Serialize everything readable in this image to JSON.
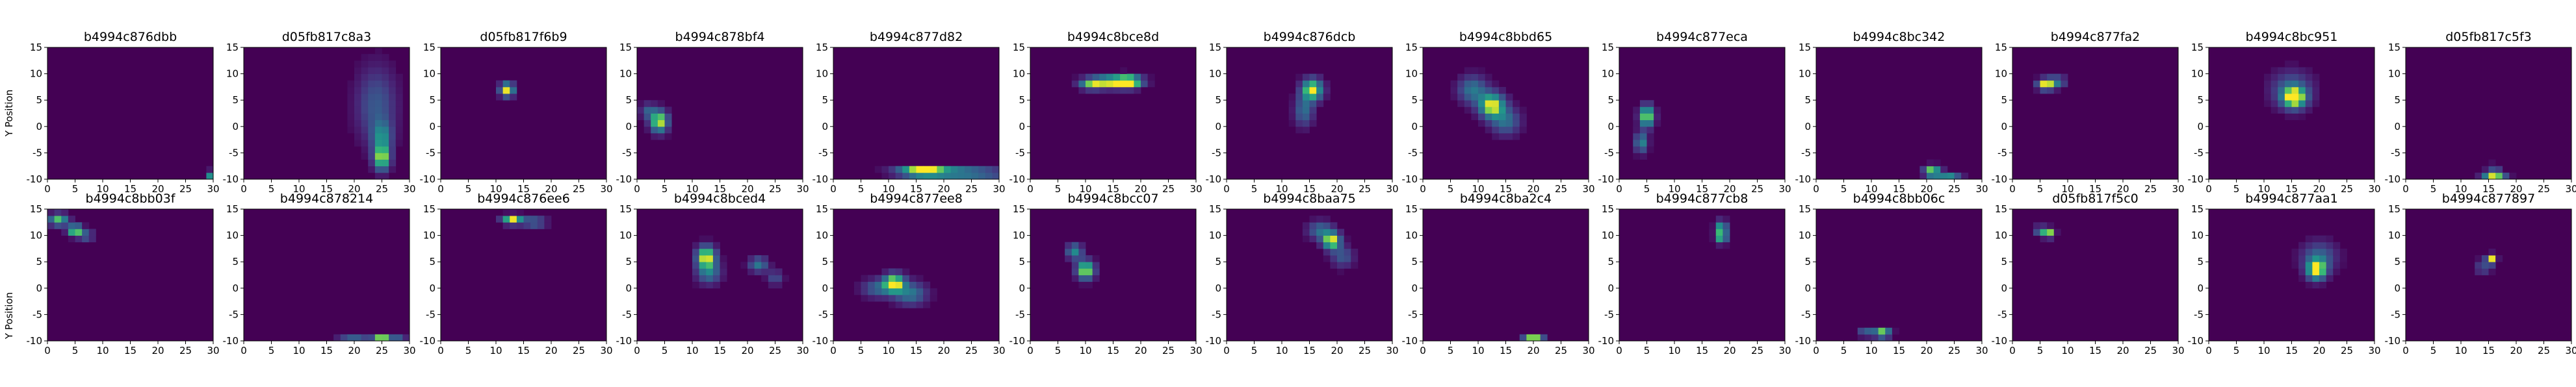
{
  "figure": {
    "ylabel": "Y Position",
    "colormap": "viridis",
    "background_color": "#440154",
    "text_color": "#000000"
  },
  "chart_data": {
    "type": "heatmap",
    "layout": {
      "rows": 2,
      "cols": 13
    },
    "xlim": [
      0,
      30
    ],
    "ylim": [
      -10,
      15
    ],
    "x_ticks": [
      0,
      5,
      10,
      15,
      20,
      25,
      30
    ],
    "y_ticks": [
      -10,
      -5,
      0,
      5,
      10,
      15
    ],
    "bin_size": 1.25,
    "panels": [
      {
        "title": "b4994c876dbb",
        "blobs": [
          [
            29.5,
            -9,
            0.4,
            0.4,
            1.0
          ]
        ]
      },
      {
        "title": "d05fb817c8a3",
        "blobs": [
          [
            25,
            -6,
            1.0,
            1.6,
            0.9
          ],
          [
            24,
            4,
            2.5,
            5.0,
            0.35
          ],
          [
            25,
            -2,
            1.2,
            2.0,
            0.5
          ]
        ]
      },
      {
        "title": "d05fb817f6b9",
        "blobs": [
          [
            12,
            7,
            0.9,
            0.9,
            1.0
          ]
        ]
      },
      {
        "title": "b4994c878bf4",
        "blobs": [
          [
            4,
            1,
            1.1,
            1.4,
            1.0
          ],
          [
            2,
            3,
            1.0,
            1.0,
            0.35
          ]
        ]
      },
      {
        "title": "b4994c877d82",
        "blobs": [
          [
            16,
            -8.5,
            2.8,
            0.6,
            1.0
          ],
          [
            22,
            -8.5,
            6.0,
            0.6,
            0.55
          ],
          [
            24,
            -9.5,
            6.0,
            0.5,
            0.3
          ]
        ]
      },
      {
        "title": "b4994c8bce8d",
        "blobs": [
          [
            15,
            8.5,
            2.8,
            0.8,
            1.0
          ],
          [
            18,
            8.5,
            1.5,
            0.8,
            0.8
          ],
          [
            11,
            8,
            1.5,
            0.7,
            0.6
          ]
        ]
      },
      {
        "title": "b4994c876dcb",
        "blobs": [
          [
            15.5,
            7,
            1.3,
            1.4,
            1.0
          ],
          [
            14,
            3,
            1.2,
            2.0,
            0.45
          ]
        ]
      },
      {
        "title": "b4994c8bbd65",
        "blobs": [
          [
            12.5,
            4,
            1.6,
            1.6,
            1.0
          ],
          [
            9,
            7,
            1.8,
            1.8,
            0.5
          ],
          [
            15,
            1,
            1.8,
            1.8,
            0.45
          ]
        ]
      },
      {
        "title": "b4994c877eca",
        "blobs": [
          [
            5,
            2,
            0.9,
            1.4,
            1.0
          ],
          [
            4,
            -3,
            0.8,
            1.3,
            0.6
          ]
        ]
      },
      {
        "title": "b4994c8bc342",
        "blobs": [
          [
            21,
            -8.5,
            1.0,
            0.7,
            1.0
          ],
          [
            24,
            -9.3,
            1.5,
            0.5,
            0.6
          ]
        ]
      },
      {
        "title": "b4994c877fa2",
        "blobs": [
          [
            6,
            8,
            1.0,
            0.7,
            1.0
          ],
          [
            8,
            8.5,
            1.2,
            0.8,
            0.45
          ]
        ]
      },
      {
        "title": "b4994c8bc951",
        "blobs": [
          [
            15.5,
            5.5,
            1.4,
            1.3,
            1.0
          ],
          [
            15,
            7,
            2.6,
            2.4,
            0.4
          ]
        ]
      },
      {
        "title": "d05fb817c5f3",
        "blobs": [
          [
            16,
            -9.5,
            1.4,
            0.5,
            1.0
          ],
          [
            16,
            -8,
            1.0,
            0.6,
            0.3
          ]
        ]
      },
      {
        "title": "b4994c8bb03f",
        "blobs": [
          [
            5,
            11,
            0.9,
            0.7,
            1.0
          ],
          [
            2,
            13,
            1.2,
            0.8,
            0.8
          ],
          [
            7,
            10,
            1.0,
            0.7,
            0.4
          ]
        ]
      },
      {
        "title": "b4994c878214",
        "blobs": [
          [
            25,
            -9.5,
            1.0,
            0.5,
            1.0
          ],
          [
            20,
            -9.5,
            2.0,
            0.4,
            0.4
          ],
          [
            28,
            -9.3,
            1.0,
            0.4,
            0.35
          ]
        ]
      },
      {
        "title": "b4994c876ee6",
        "blobs": [
          [
            13,
            13,
            1.3,
            0.6,
            1.0
          ],
          [
            17,
            12.5,
            1.5,
            0.6,
            0.5
          ]
        ]
      },
      {
        "title": "b4994c8bced4",
        "blobs": [
          [
            12.5,
            6,
            1.2,
            1.4,
            1.0
          ],
          [
            13,
            3,
            1.5,
            1.5,
            0.5
          ],
          [
            22,
            4.5,
            1.2,
            1.0,
            0.5
          ],
          [
            25,
            2,
            1.0,
            1.0,
            0.3
          ]
        ]
      },
      {
        "title": "b4994c877ee8",
        "blobs": [
          [
            11,
            1,
            1.3,
            1.2,
            1.0
          ],
          [
            14,
            -1,
            2.0,
            1.5,
            0.5
          ],
          [
            8,
            0,
            2.0,
            1.2,
            0.4
          ]
        ]
      },
      {
        "title": "b4994c8bcc07",
        "blobs": [
          [
            10,
            3.5,
            1.1,
            1.2,
            1.0
          ],
          [
            8,
            7,
            1.0,
            1.0,
            0.6
          ]
        ]
      },
      {
        "title": "b4994c8baa75",
        "blobs": [
          [
            19,
            9,
            1.1,
            1.1,
            1.0
          ],
          [
            17,
            11,
            1.6,
            1.2,
            0.45
          ],
          [
            21,
            6,
            1.4,
            1.4,
            0.35
          ]
        ]
      },
      {
        "title": "b4994c8ba2c4",
        "blobs": [
          [
            20,
            -9.5,
            1.2,
            0.5,
            1.0
          ]
        ]
      },
      {
        "title": "b4994c877cb8",
        "blobs": [
          [
            18.5,
            10,
            0.7,
            0.9,
            1.0
          ],
          [
            18.5,
            12,
            0.7,
            0.7,
            0.6
          ]
        ]
      },
      {
        "title": "b4994c8bb06c",
        "blobs": [
          [
            12,
            -8.5,
            1.0,
            0.6,
            1.0
          ],
          [
            9,
            -8.5,
            1.0,
            0.5,
            0.5
          ]
        ]
      },
      {
        "title": "d05fb817f5c0",
        "blobs": [
          [
            6.5,
            10.5,
            0.7,
            0.6,
            1.0
          ],
          [
            5,
            11,
            0.7,
            0.6,
            0.5
          ]
        ]
      },
      {
        "title": "b4994c877aa1",
        "blobs": [
          [
            19.5,
            3.5,
            1.2,
            1.3,
            1.0
          ],
          [
            20,
            6,
            2.2,
            2.0,
            0.4
          ]
        ]
      },
      {
        "title": "b4994c877897",
        "blobs": [
          [
            15.5,
            5.5,
            0.6,
            0.6,
            1.0
          ],
          [
            14,
            4,
            1.0,
            1.0,
            0.3
          ]
        ]
      }
    ]
  }
}
